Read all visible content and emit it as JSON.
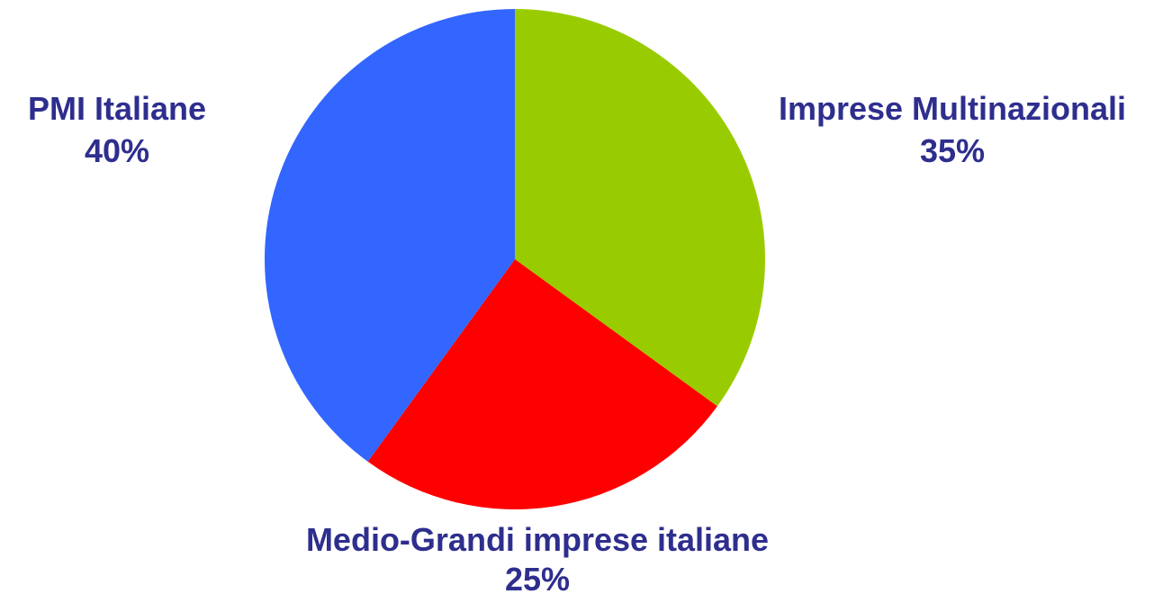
{
  "chart_data": {
    "type": "pie",
    "title": "",
    "start_angle_deg": 0,
    "direction": "clockwise",
    "slices": [
      {
        "label": "Imprese Multinazionali",
        "value": 35,
        "value_label": "35%",
        "color": "#99cc00"
      },
      {
        "label": "Medio-Grandi imprese italiane",
        "value": 25,
        "value_label": "25%",
        "color": "#ff0000"
      },
      {
        "label": "PMI Italiane",
        "value": 40,
        "value_label": "40%",
        "color": "#3366ff"
      }
    ],
    "label_color": "#2e2e8e",
    "legend": "none"
  }
}
